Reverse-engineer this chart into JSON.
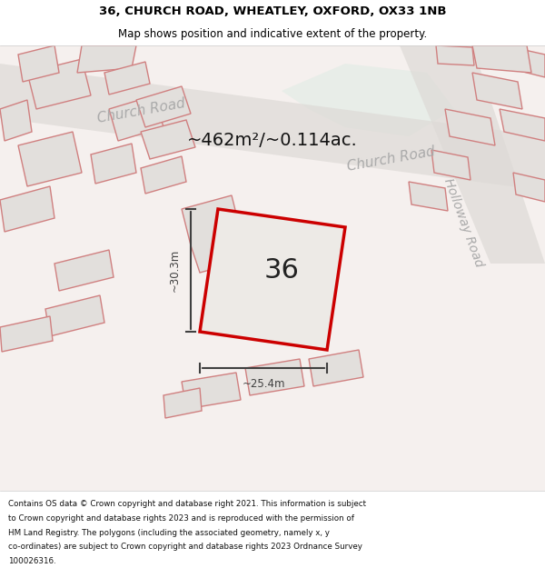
{
  "title_line1": "36, CHURCH ROAD, WHEATLEY, OXFORD, OX33 1NB",
  "title_line2": "Map shows position and indicative extent of the property.",
  "footer_text": "Contains OS data © Crown copyright and database right 2021. This information is subject to Crown copyright and database rights 2023 and is reproduced with the permission of HM Land Registry. The polygons (including the associated geometry, namely x, y co-ordinates) are subject to Crown copyright and database rights 2023 Ordnance Survey 100026316.",
  "area_label": "~462m²/~0.114ac.",
  "number_label": "36",
  "dim_width": "~25.4m",
  "dim_height": "~30.3m",
  "road_label1": "Church Road",
  "road_label2": "Church Road",
  "road_label3": "Holloway Road",
  "bg_color": "#f5f0ee",
  "map_bg": "#f5f0ee",
  "road_color": "#d8d0c8",
  "green_area": "#e8ede8",
  "property_fill": "#e8e4e0",
  "property_outline": "#cc0000",
  "other_outline": "#e8a0a0",
  "dim_color": "#404040",
  "title_color": "#000000",
  "footer_bg": "#ffffff"
}
